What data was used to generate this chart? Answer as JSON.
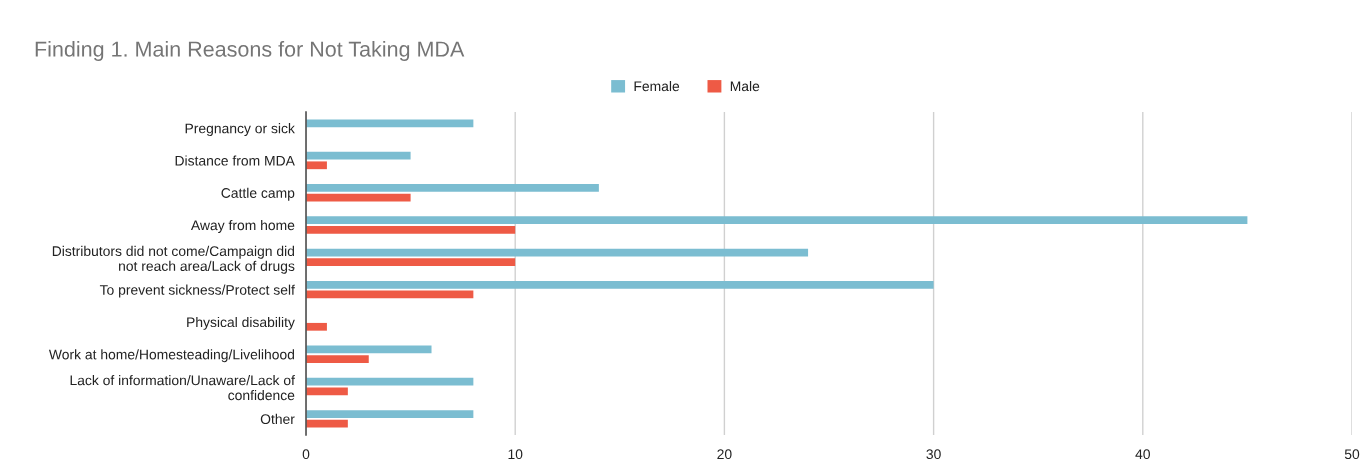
{
  "chart_data": {
    "type": "bar",
    "orientation": "horizontal",
    "title": "Finding 1. Main Reasons for Not Taking MDA",
    "categories": [
      "Pregnancy or sick",
      "Distance from MDA",
      "Cattle camp",
      "Away from home",
      "Distributors did not come/Campaign did\nnot reach area/Lack of drugs",
      "To prevent sickness/Protect self",
      "Physical disability",
      "Work at home/Homesteading/Livelihood",
      "Lack of information/Unaware/Lack of\nconfidence",
      "Other"
    ],
    "series": [
      {
        "name": "Female",
        "color": "#7bbdd1",
        "values": [
          8,
          5,
          14,
          45,
          24,
          30,
          0,
          6,
          8,
          8
        ]
      },
      {
        "name": "Male",
        "color": "#ee5a45",
        "values": [
          0,
          1,
          5,
          10,
          10,
          8,
          1,
          3,
          2,
          2
        ]
      }
    ],
    "xlim": [
      0,
      50
    ],
    "xticks": [
      0,
      10,
      20,
      30,
      40,
      50
    ],
    "grid": "x",
    "legend": "top"
  }
}
